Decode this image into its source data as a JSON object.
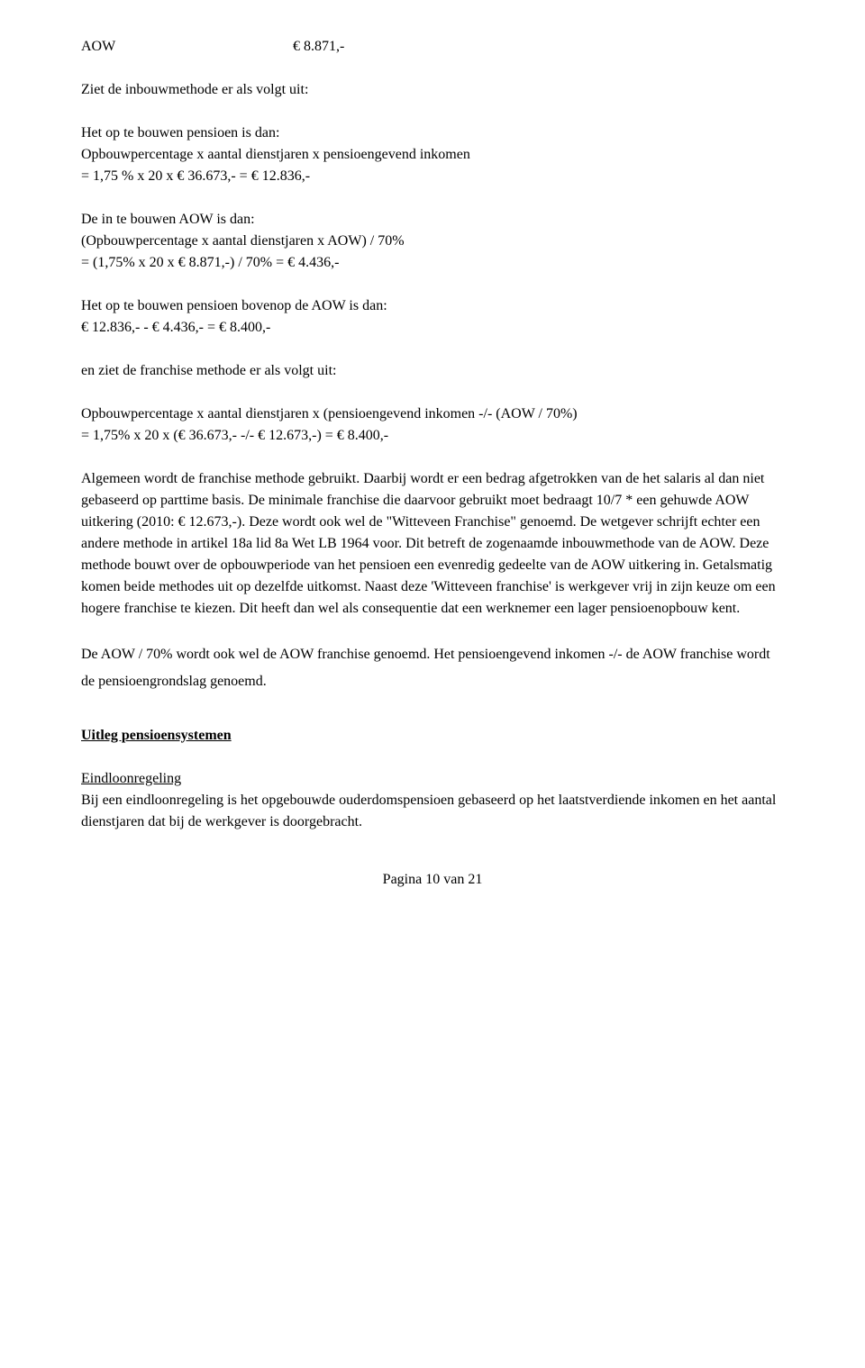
{
  "topRow": {
    "label": "AOW",
    "value": "€  8.871,-"
  },
  "p1": "Ziet de inbouwmethode er als volgt uit:",
  "p2": "Het op te bouwen pensioen is dan:",
  "p3": "Opbouwpercentage x aantal dienstjaren x pensioengevend inkomen",
  "p4": "= 1,75 % x 20 x € 36.673,- = € 12.836,-",
  "p5": "De in te bouwen AOW is dan:",
  "p6": "(Opbouwpercentage x aantal dienstjaren x AOW) / 70%",
  "p7": "= (1,75% x 20 x € 8.871,-) / 70% = € 4.436,-",
  "p8": "Het op te bouwen pensioen bovenop de AOW is dan:",
  "p9": "€ 12.836,- - € 4.436,- = € 8.400,-",
  "p10": "en ziet de franchise methode er als volgt uit:",
  "p11": "Opbouwpercentage x aantal dienstjaren x (pensioengevend inkomen -/- (AOW / 70%)",
  "p12": "= 1,75% x 20 x (€ 36.673,- -/- € 12.673,-) = € 8.400,-",
  "p13": "Algemeen wordt de franchise methode gebruikt. Daarbij wordt er een bedrag afgetrokken van de het salaris al dan niet gebaseerd op parttime basis. De minimale franchise die daarvoor gebruikt moet bedraagt 10/7 * een gehuwde AOW uitkering (2010: € 12.673,-). Deze wordt ook wel de \"Witteveen Franchise\" genoemd. De wetgever schrijft echter een andere methode in artikel 18a lid 8a Wet LB 1964 voor. Dit betreft de zogenaamde inbouwmethode van de AOW. Deze methode bouwt over de opbouwperiode van het pensioen een evenredig gedeelte van de AOW uitkering in. Getalsmatig komen beide methodes uit op dezelfde uitkomst. Naast deze 'Witteveen franchise' is werkgever vrij in zijn keuze om een hogere franchise te kiezen. Dit heeft dan wel als consequentie dat een werknemer een lager pensioenopbouw kent.",
  "p14": "De AOW / 70% wordt ook wel de AOW franchise genoemd. Het pensioengevend inkomen -/- de AOW franchise wordt de pensioengrondslag genoemd.",
  "heading": "Uitleg pensioensystemen",
  "subheading": "Eindloonregeling",
  "p15": "Bij een eindloonregeling is het opgebouwde ouderdomspensioen gebaseerd op het laatstverdiende inkomen en het aantal dienstjaren dat bij de werkgever is doorgebracht.",
  "footer": "Pagina 10 van 21"
}
